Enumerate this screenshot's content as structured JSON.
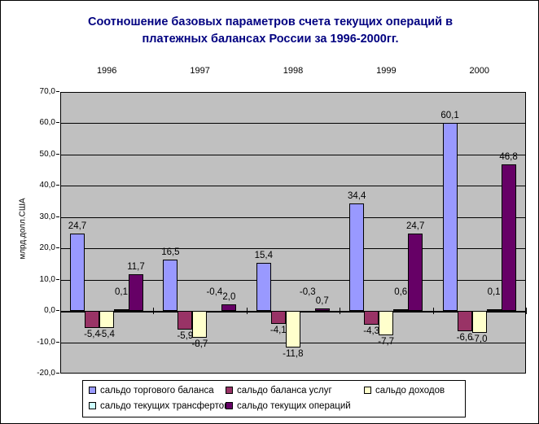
{
  "page": {
    "background": "#FFFFFF"
  },
  "chart_data": {
    "type": "bar",
    "title": "Соотношение базовых параметров счета текущих операций в платежных балансах России за 1996-2000гг.",
    "title_lines": [
      "Соотношение базовых параметров счета текущих операций в",
      "платежных балансах России за 1996-2000гг."
    ],
    "ylabel": "млрд.долл.США",
    "xlabel": "",
    "categories": [
      "1996",
      "1997",
      "1998",
      "1999",
      "2000"
    ],
    "series": [
      {
        "name": "сальдо торгового баланса",
        "color": "#9999FF",
        "values": [
          24.7,
          16.5,
          15.4,
          34.4,
          60.1
        ],
        "labels": [
          "24,7",
          "16,5",
          "15,4",
          "34,4",
          "60,1"
        ]
      },
      {
        "name": "сальдо баланса услуг",
        "color": "#993366",
        "values": [
          -5.4,
          -5.9,
          -4.1,
          -4.3,
          -6.6
        ],
        "labels": [
          "-5,4",
          "-5,9",
          "-4,1",
          "-4,3",
          "-6,6"
        ]
      },
      {
        "name": "сальдо доходов",
        "color": "#FFFFCC",
        "values": [
          -5.4,
          -8.7,
          -11.8,
          -7.7,
          -7.0
        ],
        "labels": [
          "-5,4",
          "-8,7",
          "-11,8",
          "-7,7",
          "-7,0"
        ]
      },
      {
        "name": "сальдо текущих трансфертов",
        "color": "#CCFFFF",
        "values": [
          0.1,
          -0.4,
          -0.3,
          0.6,
          0.1
        ],
        "labels": [
          "0,1",
          "-0,4",
          "-0,3",
          "0,6",
          "0,1"
        ]
      },
      {
        "name": "сальдо текущих операций",
        "color": "#660066",
        "values": [
          11.7,
          2.0,
          0.7,
          24.7,
          46.8
        ],
        "labels": [
          "11,7",
          "2,0",
          "0,7",
          "24,7",
          "46,8"
        ]
      }
    ],
    "ylim": [
      -20,
      70
    ],
    "ytick_step": 10,
    "ytick_labels": [
      "70,0",
      "60,0",
      "50,0",
      "40,0",
      "30,0",
      "20,0",
      "10,0",
      "0,0",
      "-10,0",
      "-20,0"
    ],
    "grid": true,
    "legend_position": "bottom",
    "colors": {
      "plot_bg": "#C0C0C0",
      "grid": "#000000",
      "axis_line": "#000000",
      "title_text": "#000080",
      "axis_text": "#000000",
      "data_label_text": "#000000",
      "legend_bg": "#FFFFFF",
      "legend_border": "#000000"
    }
  }
}
